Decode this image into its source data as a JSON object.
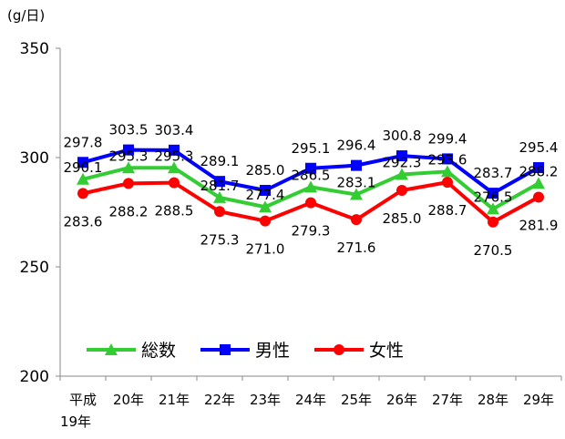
{
  "chart_data": {
    "type": "line",
    "unit_label": "(g/日)",
    "categories": [
      [
        "平成",
        "19年"
      ],
      [
        "20年"
      ],
      [
        "21年"
      ],
      [
        "22年"
      ],
      [
        "23年"
      ],
      [
        "24年"
      ],
      [
        "25年"
      ],
      [
        "26年"
      ],
      [
        "27年"
      ],
      [
        "28年"
      ],
      [
        "29年"
      ]
    ],
    "ylim": [
      200,
      350
    ],
    "yticks": [
      200,
      250,
      300,
      350
    ],
    "grid": false,
    "legend_position": "bottom-center",
    "series": [
      {
        "name": "総数",
        "color": "#33cc33",
        "marker": "triangle",
        "values": [
          290.1,
          295.3,
          295.3,
          281.7,
          277.4,
          286.5,
          283.1,
          292.3,
          293.6,
          276.5,
          288.2
        ],
        "labels": [
          "290.1",
          "295.3",
          "295.3",
          "281.7",
          "277.4",
          "286.5",
          "283.1",
          "292.3",
          "293.6",
          "276.5",
          "288.2"
        ]
      },
      {
        "name": "男性",
        "color": "#0000ff",
        "marker": "square",
        "values": [
          297.8,
          303.5,
          303.4,
          289.1,
          285.0,
          295.1,
          296.4,
          300.8,
          299.4,
          283.7,
          295.4
        ],
        "labels": [
          "297.8",
          "303.5",
          "303.4",
          "289.1",
          "285.0",
          "295.1",
          "296.4",
          "300.8",
          "299.4",
          "283.7",
          "295.4"
        ]
      },
      {
        "name": "女性",
        "color": "#ff0000",
        "marker": "circle",
        "values": [
          283.6,
          288.2,
          288.5,
          275.3,
          271.0,
          279.3,
          271.6,
          285.0,
          288.7,
          270.5,
          281.9
        ],
        "labels": [
          "283.6",
          "288.2",
          "288.5",
          "275.3",
          "271.0",
          "279.3",
          "271.6",
          "285.0",
          "288.7",
          "270.5",
          "281.9"
        ]
      }
    ]
  }
}
